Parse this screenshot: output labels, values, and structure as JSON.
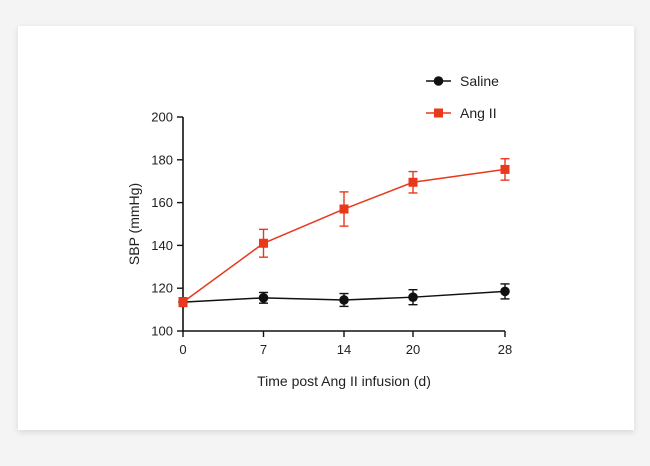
{
  "chart_data": {
    "type": "line",
    "xlabel": "Time post Ang II infusion (d)",
    "ylabel": "SBP (mmHg)",
    "x": [
      0,
      7,
      14,
      20,
      28
    ],
    "x_ticks": [
      "0",
      "7",
      "14",
      "20",
      "28"
    ],
    "ylim": [
      100,
      200
    ],
    "y_ticks": [
      "100",
      "120",
      "140",
      "160",
      "180",
      "200"
    ],
    "legend_position": "top-right",
    "series": [
      {
        "name": "Saline",
        "marker": "circle",
        "color": "#111111",
        "values": [
          113.5,
          115.5,
          114.5,
          115.8,
          118.5
        ],
        "errors": [
          2,
          2.5,
          3,
          3.5,
          3.5
        ]
      },
      {
        "name": "Ang II",
        "marker": "square",
        "color": "#e8391d",
        "values": [
          113.5,
          141,
          157,
          169.5,
          175.5
        ],
        "errors": [
          2,
          6.5,
          8,
          5,
          5
        ]
      }
    ]
  }
}
